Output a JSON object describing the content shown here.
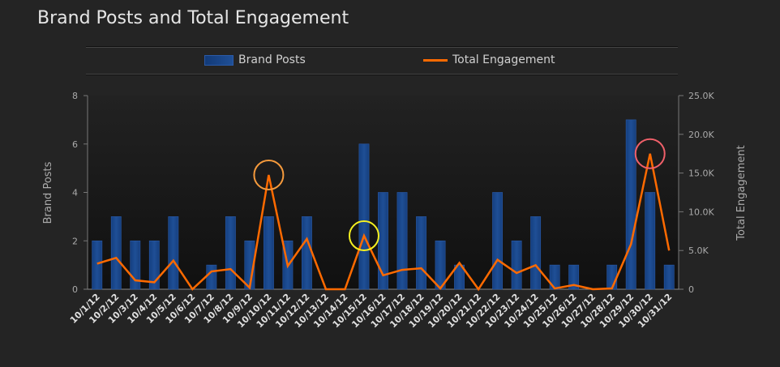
{
  "chart_data": {
    "type": "bar+line",
    "title": "Brand Posts and Total Engagement",
    "categories": [
      "10/1/12",
      "10/2/12",
      "10/3/12",
      "10/4/12",
      "10/5/12",
      "10/6/12",
      "10/7/12",
      "10/8/12",
      "10/9/12",
      "10/10/12",
      "10/11/12",
      "10/12/12",
      "10/13/12",
      "10/14/12",
      "10/15/12",
      "10/16/12",
      "10/17/12",
      "10/18/12",
      "10/19/12",
      "10/20/12",
      "10/21/12",
      "10/22/12",
      "10/23/12",
      "10/24/12",
      "10/25/12",
      "10/26/12",
      "10/27/12",
      "10/28/12",
      "10/29/12",
      "10/30/12",
      "10/31/12"
    ],
    "series": [
      {
        "name": "Brand Posts",
        "type": "bar",
        "axis": "left",
        "color": "#1f4f96",
        "values": [
          2,
          3,
          2,
          2,
          3,
          0,
          1,
          3,
          2,
          3,
          2,
          3,
          0,
          0,
          6,
          4,
          4,
          3,
          2,
          1,
          0,
          4,
          2,
          3,
          1,
          1,
          0,
          1,
          7,
          4,
          1
        ]
      },
      {
        "name": "Total Engagement",
        "type": "line",
        "axis": "right",
        "color": "#ff6a00",
        "values": [
          3300,
          4050,
          1150,
          900,
          3700,
          0,
          2300,
          2600,
          200,
          14750,
          3000,
          6500,
          0,
          0,
          6900,
          1800,
          2500,
          2700,
          100,
          3400,
          0,
          3800,
          2100,
          3100,
          100,
          550,
          0,
          100,
          5800,
          17500,
          5000
        ]
      }
    ],
    "left_axis": {
      "label": "Brand Posts",
      "range": [
        0,
        8
      ],
      "ticks": [
        "0",
        "2",
        "4",
        "6",
        "8"
      ]
    },
    "right_axis": {
      "label": "Total Engagement",
      "range": [
        0,
        25000
      ],
      "ticks": [
        "0",
        "5.0K",
        "10.0K",
        "15.0K",
        "20.0K",
        "25.0K"
      ]
    },
    "legend_placement": "top",
    "grid": false,
    "annotations": [
      {
        "category": "10/10/12",
        "shape": "circle",
        "color": "#f59a3c"
      },
      {
        "category": "10/15/12",
        "shape": "circle",
        "color": "#f5f020"
      },
      {
        "category": "10/30/12",
        "shape": "circle",
        "color": "#f0606a"
      }
    ]
  }
}
